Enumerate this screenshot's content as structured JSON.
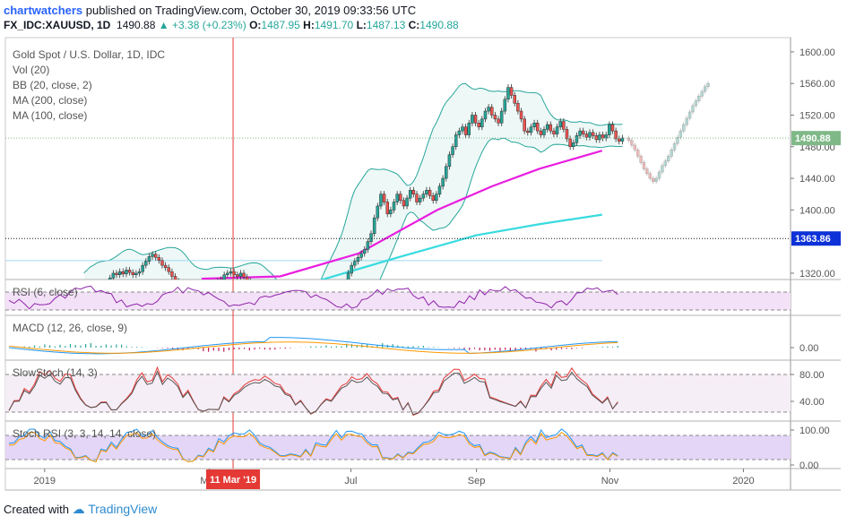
{
  "header": {
    "author": "chartwatchers",
    "published_text": "published on TradingView.com, October 30, 2019 09:33:56 UTC",
    "symbol": "FX_IDC:XAUUSD, 1D",
    "last": "1490.88",
    "change": "+3.38 (+0.23%)",
    "o_label": "O:",
    "o": "1487.95",
    "h_label": "H:",
    "h": "1491.70",
    "l_label": "L:",
    "l": "1487.13",
    "c_label": "C:",
    "c": "1490.88"
  },
  "legend": {
    "title": "Gold Spot / U.S. Dollar, 1D, IDC",
    "vol": "Vol (20)",
    "bb": "BB (20, close, 2)",
    "ma200": "MA (200, close)",
    "ma100": "MA (100, close)"
  },
  "footer": {
    "created_with": "Created with",
    "brand": "TradingView"
  },
  "chart_data": {
    "type": "candlestick",
    "main_axis": {
      "ticks": [
        "1600.00",
        "1560.00",
        "1520.00",
        "1480.00",
        "1440.00",
        "1400.00",
        "1320.00"
      ],
      "tick_values": [
        1600,
        1560,
        1520,
        1480,
        1440,
        1400,
        1320
      ],
      "ylim": [
        1312,
        1618
      ]
    },
    "price_label": "1490.88",
    "price_value": 1490.88,
    "level_label": "1363.86",
    "level_value": 1363.86,
    "x_labels": [
      "2019",
      "May",
      "Jul",
      "Sep",
      "Nov",
      "2020"
    ],
    "x_label_pos": [
      0.05,
      0.26,
      0.44,
      0.6,
      0.77,
      0.94
    ],
    "crosshair_label": "11 Mar '19",
    "crosshair_pos": 0.29,
    "closes": [
      1282,
      1286,
      1290,
      1293,
      1291,
      1292,
      1296,
      1305,
      1314,
      1320,
      1318,
      1322,
      1319,
      1324,
      1321,
      1318,
      1320,
      1322,
      1330,
      1335,
      1341,
      1344,
      1340,
      1336,
      1330,
      1327,
      1322,
      1316,
      1310,
      1306,
      1304,
      1298,
      1296,
      1293,
      1290,
      1292,
      1295,
      1297,
      1300,
      1302,
      1304,
      1310,
      1312,
      1318,
      1320,
      1322,
      1318,
      1316,
      1320,
      1315,
      1310,
      1306,
      1302,
      1298,
      1294,
      1290,
      1286,
      1283,
      1282,
      1280,
      1278,
      1276,
      1274,
      1272,
      1275,
      1278,
      1280,
      1283,
      1285,
      1282,
      1284,
      1286,
      1288,
      1289,
      1286,
      1284,
      1282,
      1280,
      1284,
      1290,
      1300,
      1320,
      1330,
      1335,
      1340,
      1345,
      1350,
      1360,
      1370,
      1390,
      1405,
      1420,
      1410,
      1395,
      1400,
      1410,
      1420,
      1412,
      1405,
      1415,
      1425,
      1420,
      1410,
      1415,
      1420,
      1425,
      1418,
      1412,
      1420,
      1430,
      1440,
      1455,
      1470,
      1480,
      1495,
      1500,
      1505,
      1495,
      1510,
      1520,
      1510,
      1505,
      1515,
      1525,
      1530,
      1520,
      1515,
      1510,
      1525,
      1540,
      1555,
      1545,
      1535,
      1525,
      1515,
      1500,
      1498,
      1505,
      1510,
      1500,
      1495,
      1502,
      1508,
      1500,
      1496,
      1505,
      1512,
      1502,
      1490,
      1480,
      1485,
      1494,
      1500,
      1496,
      1492,
      1498,
      1494,
      1489,
      1495,
      1491,
      1495,
      1508,
      1500,
      1490,
      1487,
      1491
    ],
    "forecast": [
      1488,
      1482,
      1476,
      1468,
      1460,
      1452,
      1446,
      1440,
      1436,
      1440,
      1448,
      1456,
      1462,
      1468,
      1476,
      1484,
      1492,
      1500,
      1508,
      1516,
      1524,
      1532,
      1538,
      1544,
      1550,
      1556,
      1560
    ],
    "ma100": [
      [
        0.25,
        1313
      ],
      [
        0.35,
        1316
      ],
      [
        0.45,
        1345
      ],
      [
        0.55,
        1400
      ],
      [
        0.62,
        1430
      ],
      [
        0.68,
        1452
      ],
      [
        0.76,
        1475
      ]
    ],
    "ma200": [
      [
        0.38,
        1305
      ],
      [
        0.5,
        1340
      ],
      [
        0.6,
        1368
      ],
      [
        0.68,
        1382
      ],
      [
        0.76,
        1394
      ]
    ],
    "resistance_line": [
      0.0,
      0.76,
      1336
    ],
    "indicators": [
      {
        "name": "RSI (6, close)",
        "ticks": []
      },
      {
        "name": "MACD (12, 26, close, 9)",
        "ticks": [
          "0.00"
        ]
      },
      {
        "name": "SlowStoch (14, 3)",
        "ticks": [
          "80.00",
          "40.00"
        ]
      },
      {
        "name": "Stoch RSI (3, 3, 14, 14, close)",
        "ticks": [
          "100.00",
          "0.00"
        ]
      }
    ]
  },
  "colors": {
    "up": "#26a69a",
    "down": "#ef5350",
    "bb": "#26a69a",
    "ma100": "#e91ee0",
    "ma200": "#37dbe0",
    "crosshair": "#e53935",
    "label_blue": "#0d32d8",
    "label_green": "#7fb987"
  }
}
